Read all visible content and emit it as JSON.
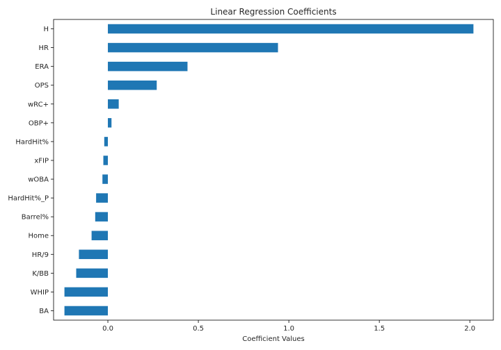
{
  "chart_data": {
    "type": "bar",
    "orientation": "horizontal",
    "title": "Linear Regression Coefficients",
    "xlabel": "Coefficient Values",
    "ylabel": "",
    "xlim": [
      -0.3,
      2.13
    ],
    "xticks": [
      0.0,
      0.5,
      1.0,
      1.5,
      2.0
    ],
    "xtick_labels": [
      "0.0",
      "0.5",
      "1.0",
      "1.5",
      "2.0"
    ],
    "grid": false,
    "bar_color": "#1f77b4",
    "categories": [
      "H",
      "HR",
      "ERA",
      "OPS",
      "wRC+",
      "OBP+",
      "HardHit%",
      "xFIP",
      "wOBA",
      "HardHit%_P",
      "Barrel%",
      "Home",
      "HR/9",
      "K/BB",
      "WHIP",
      "BA"
    ],
    "values": [
      2.02,
      0.94,
      0.44,
      0.27,
      0.06,
      0.02,
      -0.02,
      -0.025,
      -0.03,
      -0.065,
      -0.07,
      -0.09,
      -0.16,
      -0.175,
      -0.24,
      -0.24
    ]
  }
}
